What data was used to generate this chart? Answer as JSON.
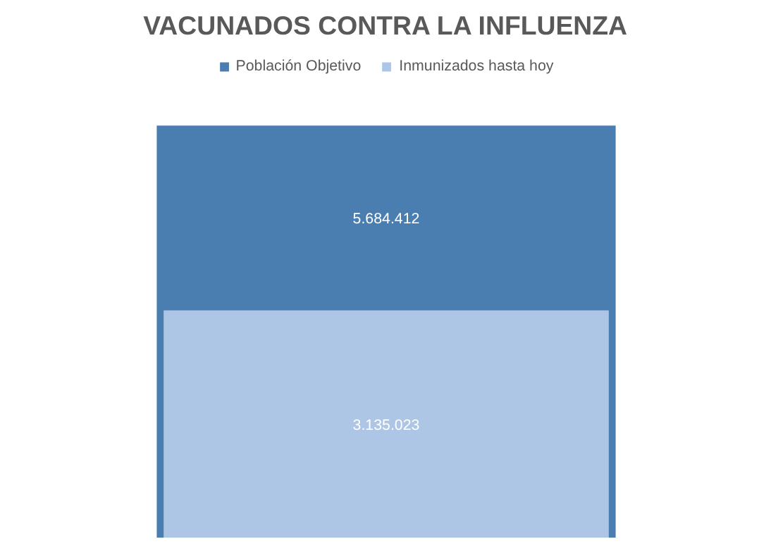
{
  "chart_data": {
    "type": "bar",
    "title": "VACUNADOS CONTRA LA INFLUENZA",
    "categories": [
      null
    ],
    "series": [
      {
        "name": "Población Objetivo",
        "color": "#4a7eb0",
        "values": [
          5684412
        ],
        "value_labels": [
          "5.684.412"
        ]
      },
      {
        "name": "Inmunizados hasta hoy",
        "color": "#adc6e6",
        "values": [
          3135023
        ],
        "value_labels": [
          "3.135.023"
        ]
      }
    ],
    "legend": "top"
  }
}
